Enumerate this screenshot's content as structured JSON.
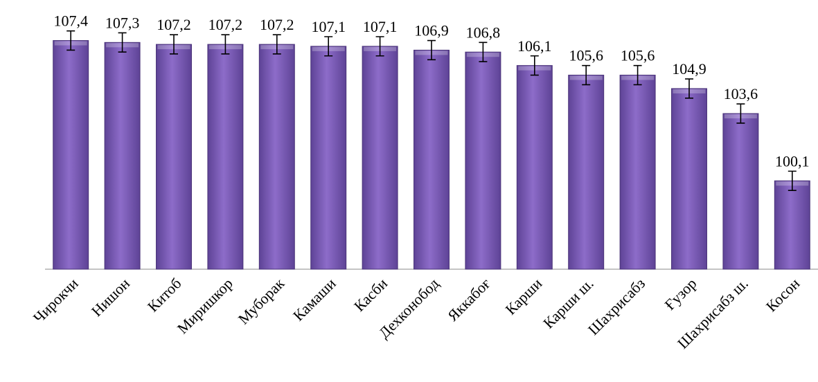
{
  "chart_data": {
    "type": "bar",
    "categories": [
      "Чирокчи",
      "Нишон",
      "Китоб",
      "Миришкор",
      "Муборак",
      "Камаши",
      "Касби",
      "Дехконобод",
      "Яккабоғ",
      "Карши",
      "Карши ш.",
      "Шахрисабз",
      "Ғузор",
      "Шахрисабз ш.",
      "Косон"
    ],
    "values": [
      107.4,
      107.3,
      107.2,
      107.2,
      107.2,
      107.1,
      107.1,
      106.9,
      106.8,
      106.1,
      105.6,
      105.6,
      104.9,
      103.6,
      100.1
    ],
    "value_labels": [
      "107,4",
      "107,3",
      "107,2",
      "107,2",
      "107,2",
      "107,1",
      "107,1",
      "106,9",
      "106,8",
      "106,1",
      "105,6",
      "105,6",
      "104,9",
      "103,6",
      "100,1"
    ],
    "error": 0.5,
    "ylim": [
      95.5,
      108.5
    ],
    "title": "",
    "xlabel": "",
    "ylabel": "",
    "grid": false,
    "legend": "none",
    "bar_color": "#7b5ab8",
    "bar_edge_color": "#4a3378"
  }
}
